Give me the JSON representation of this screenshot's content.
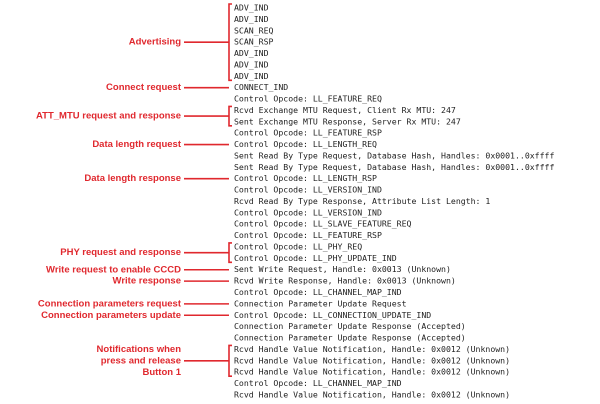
{
  "log": [
    "ADV_IND",
    "ADV_IND",
    "SCAN_REQ",
    "SCAN_RSP",
    "ADV_IND",
    "ADV_IND",
    "ADV_IND",
    "CONNECT_IND",
    "Control Opcode: LL_FEATURE_REQ",
    "Rcvd Exchange MTU Request, Client Rx MTU: 247",
    "Sent Exchange MTU Response, Server Rx MTU: 247",
    "Control Opcode: LL_FEATURE_RSP",
    "Control Opcode: LL_LENGTH_REQ",
    "Sent Read By Type Request, Database Hash, Handles: 0x0001..0xffff",
    "Sent Read By Type Request, Database Hash, Handles: 0x0001..0xffff",
    "Control Opcode: LL_LENGTH_RSP",
    "Control Opcode: LL_VERSION_IND",
    "Rcvd Read By Type Response, Attribute List Length: 1",
    "Control Opcode: LL_VERSION_IND",
    "Control Opcode: LL_SLAVE_FEATURE_REQ",
    "Control Opcode: LL_FEATURE_RSP",
    "Control Opcode: LL_PHY_REQ",
    "Control Opcode: LL_PHY_UPDATE_IND",
    "Sent Write Request, Handle: 0x0013 (Unknown)",
    "Rcvd Write Response, Handle: 0x0013 (Unknown)",
    "Control Opcode: LL_CHANNEL_MAP_IND",
    "Connection Parameter Update Request",
    "Control Opcode: LL_CONNECTION_UPDATE_IND",
    "Connection Parameter Update Response (Accepted)",
    "Connection Parameter Update Response (Accepted)",
    "Rcvd Handle Value Notification, Handle: 0x0012 (Unknown)",
    "Rcvd Handle Value Notification, Handle: 0x0012 (Unknown)",
    "Rcvd Handle Value Notification, Handle: 0x0012 (Unknown)",
    "Control Opcode: LL_CHANNEL_MAP_IND",
    "Rcvd Handle Value Notification, Handle: 0x0012 (Unknown)"
  ],
  "annotations": [
    [
      "Advertising"
    ],
    [
      "Connect request"
    ],
    [
      "ATT_MTU request and response"
    ],
    [
      "Data length request"
    ],
    [
      "Data length response"
    ],
    [
      "PHY request and response"
    ],
    [
      "Write request to enable CCCD"
    ],
    [
      "Write response"
    ],
    [
      "Connection parameters request"
    ],
    [
      "Connection parameters update"
    ],
    [
      "Notifications when",
      "press and release",
      "Button 1"
    ]
  ]
}
